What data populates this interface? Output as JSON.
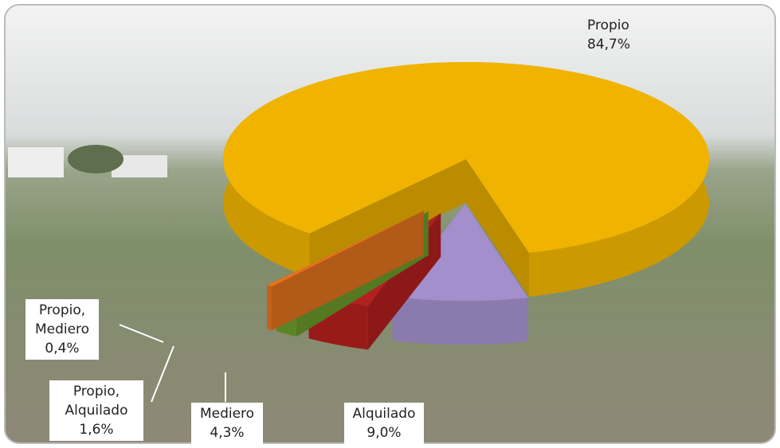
{
  "chart_data": {
    "type": "pie",
    "categories": [
      "Propio",
      "Alquilado",
      "Mediero",
      "Propio, Alquilado",
      "Propio, Mediero"
    ],
    "values": [
      84.7,
      9.0,
      4.3,
      1.6,
      0.4
    ],
    "value_labels": [
      "84,7%",
      "9,0%",
      "4,3%",
      "1,6%",
      "0,4%"
    ],
    "colors": [
      "#f0b400",
      "#a28fcb",
      "#b3201f",
      "#6c9b2b",
      "#e4731e"
    ]
  }
}
